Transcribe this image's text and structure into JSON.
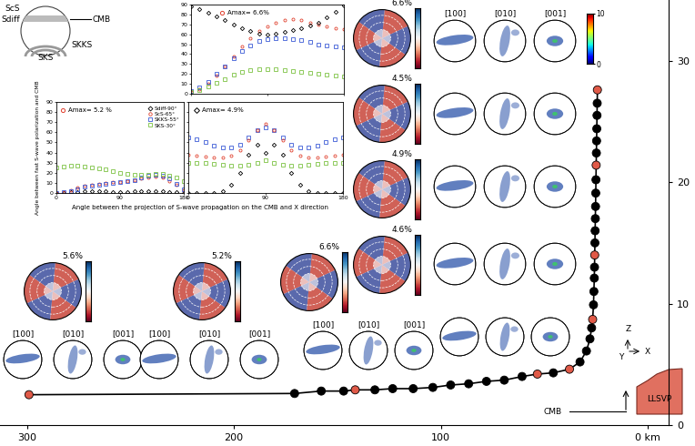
{
  "chart_data": [
    {
      "type": "scatter",
      "x": [
        299,
        170.7,
        157.8,
        147,
        141.4,
        131.9,
        123.3,
        113.4,
        103.9,
        95.3,
        86.6,
        78,
        69.4,
        60.8,
        53.4,
        45.7,
        37.9,
        32.8,
        29.7,
        28,
        27.2,
        26.7,
        26.3,
        26.1,
        25.9,
        25.8,
        25.7,
        25.6,
        25.5,
        25.4,
        25.3,
        25.2,
        25.1,
        25,
        24.9,
        24.8,
        24.7,
        24.6,
        24.5,
        24.4
      ],
      "values": [
        2.5,
        2.6,
        2.8,
        2.8,
        2.9,
        2.9,
        3.0,
        3.0,
        3.1,
        3.3,
        3.4,
        3.6,
        3.7,
        4.0,
        4.2,
        4.3,
        4.6,
        5.2,
        6.1,
        7.1,
        8.0,
        8.7,
        9.9,
        11.0,
        12.1,
        13.0,
        14.0,
        15.0,
        16.0,
        17.0,
        18.0,
        19.1,
        20.2,
        21.4,
        22.4,
        23.4,
        24.4,
        25.5,
        26.5,
        27.6
      ],
      "colors": [
        "#e05a48",
        "#000000",
        "#000000",
        "#000000",
        "#e05a48",
        "#000000",
        "#000000",
        "#000000",
        "#000000",
        "#000000",
        "#000000",
        "#000000",
        "#000000",
        "#000000",
        "#e05a48",
        "#000000",
        "#e05a48",
        "#000000",
        "#000000",
        "#000000",
        "#000000",
        "#e05a48",
        "#000000",
        "#000000",
        "#000000",
        "#000000",
        "#e05a48",
        "#000000",
        "#000000",
        "#000000",
        "#000000",
        "#000000",
        "#000000",
        "#e05a48",
        "#000000",
        "#000000",
        "#000000",
        "#000000",
        "#000000",
        "#e05a48"
      ],
      "marker": "circle",
      "line_style": "solid",
      "xlim": [
        313,
        -10
      ],
      "ylim": [
        0,
        35
      ],
      "xticks": [
        300,
        200,
        100,
        {
          "value": 0,
          "label": "0 km"
        }
      ],
      "yticks": [
        0,
        10,
        20,
        30
      ]
    },
    {
      "type": "scatter",
      "x": [
        0,
        10,
        20,
        30,
        40,
        50,
        60,
        70,
        80,
        90,
        100,
        110,
        120,
        130,
        140,
        150,
        160,
        170,
        180
      ],
      "series": [
        {
          "color": "#e0402e",
          "marker": "circle",
          "values": [
            2,
            5,
            10,
            18,
            28,
            38,
            48,
            56,
            63,
            68,
            72,
            74,
            75,
            74,
            72,
            70,
            68,
            66,
            65
          ]
        },
        {
          "color": "#000000",
          "marker": "diamond",
          "values": [
            88,
            85,
            82,
            78,
            74,
            70,
            66,
            63,
            61,
            60,
            61,
            62,
            64,
            66,
            69,
            72,
            77,
            83,
            89
          ]
        },
        {
          "color": "#3b5bd6",
          "marker": "square",
          "values": [
            3,
            6,
            12,
            20,
            28,
            36,
            43,
            49,
            53,
            55,
            56,
            56,
            55,
            54,
            52,
            50,
            49,
            48,
            47
          ]
        },
        {
          "color": "#7cc242",
          "marker": "square",
          "values": [
            2,
            4,
            7,
            11,
            15,
            19,
            22,
            24,
            25,
            25,
            25,
            24,
            23,
            22,
            21,
            20,
            19,
            18,
            17
          ]
        }
      ],
      "annotation": {
        "text": "Amax= 6.6%",
        "marker": "circle",
        "color": "#e0402e"
      },
      "xlim": [
        0,
        180
      ],
      "ylim": [
        0,
        90
      ],
      "xticks": [
        0,
        90,
        180
      ],
      "yticks": [
        0,
        10,
        20,
        30,
        40,
        50,
        60,
        70,
        80,
        90
      ],
      "tick_labels": "y"
    },
    {
      "type": "scatter",
      "x": [
        0,
        10,
        20,
        30,
        40,
        50,
        60,
        70,
        80,
        90,
        100,
        110,
        120,
        130,
        140,
        150,
        160,
        170,
        180
      ],
      "series": [
        {
          "name": "Sdiff-90°",
          "color": "#000000",
          "marker": "diamond",
          "values": [
            0,
            0,
            1,
            1,
            2,
            2,
            2,
            2,
            1,
            1,
            1,
            2,
            2,
            2,
            2,
            2,
            1,
            1,
            0
          ]
        },
        {
          "name": "ScS-65°",
          "color": "#e0402e",
          "marker": "circle",
          "values": [
            0,
            1,
            3,
            5,
            7,
            8,
            9,
            10,
            11,
            11,
            12,
            13,
            14,
            15,
            16,
            15,
            12,
            8,
            3
          ]
        },
        {
          "name": "SKKS-55°",
          "color": "#3b5bd6",
          "marker": "square",
          "values": [
            0,
            1,
            2,
            4,
            6,
            7,
            8,
            9,
            10,
            11,
            12,
            13,
            15,
            17,
            18,
            17,
            14,
            9,
            4
          ]
        },
        {
          "name": "SKS-30°",
          "color": "#7cc242",
          "marker": "square",
          "values": [
            25,
            26,
            27,
            27,
            26,
            25,
            24,
            23,
            22,
            20,
            19,
            18,
            18,
            18,
            19,
            19,
            17,
            15,
            12
          ]
        }
      ],
      "annotation": {
        "text": "Amax= 5.2 %",
        "marker": "circle",
        "color": "#e0402e"
      },
      "legend": "upper right",
      "xlim": [
        0,
        180
      ],
      "ylim": [
        0,
        90
      ],
      "xticks": [
        0,
        90,
        180
      ],
      "yticks": [
        0,
        10,
        20,
        30,
        40,
        50,
        60,
        70,
        80,
        90
      ]
    },
    {
      "type": "scatter",
      "x": [
        0,
        10,
        20,
        30,
        40,
        50,
        60,
        70,
        80,
        90,
        100,
        110,
        120,
        130,
        140,
        150,
        160,
        170,
        180
      ],
      "series": [
        {
          "color": "#3b5bd6",
          "marker": "square",
          "values": [
            55,
            53,
            50,
            47,
            45,
            45,
            48,
            55,
            62,
            65,
            62,
            55,
            48,
            45,
            45,
            47,
            50,
            53,
            55
          ]
        },
        {
          "color": "#e0402e",
          "marker": "circle",
          "values": [
            38,
            37,
            36,
            35,
            35,
            37,
            42,
            52,
            62,
            68,
            62,
            52,
            42,
            37,
            35,
            35,
            36,
            37,
            38
          ]
        },
        {
          "color": "#7cc242",
          "marker": "square",
          "values": [
            30,
            30,
            30,
            29,
            28,
            27,
            27,
            28,
            30,
            32,
            30,
            28,
            27,
            27,
            28,
            29,
            30,
            30,
            30
          ]
        },
        {
          "color": "#000000",
          "marker": "diamond",
          "values": [
            0,
            0,
            0,
            0,
            2,
            8,
            20,
            38,
            48,
            40,
            48,
            38,
            20,
            8,
            2,
            0,
            0,
            0,
            0
          ]
        }
      ],
      "annotation": {
        "text": "Amax= 4.9%",
        "marker": "diamond",
        "color": "#000000"
      },
      "xlim": [
        0,
        180
      ],
      "ylim": [
        0,
        90
      ],
      "xticks": [
        0,
        90,
        180
      ],
      "yticks": [
        0,
        10,
        20,
        30,
        40,
        50,
        60,
        70,
        80,
        90
      ],
      "tick_labels": "x"
    }
  ],
  "axis_labels": {
    "x": "Angle between the projection of S-wave propagation on the CMB and X direction",
    "y": "Angle between fast S-wave polarization and CMB"
  },
  "schematic": {
    "labels": [
      "ScS",
      "Sdiff",
      "CMB",
      "SKKS",
      "SKS"
    ]
  },
  "pole_figures": {
    "axes": [
      "[100]",
      "[010]",
      "[001]"
    ],
    "colorbar": {
      "range": [
        0,
        10
      ],
      "ticks": [
        0,
        10
      ]
    },
    "anisotropy": [
      "6.6%",
      "4.5%",
      "4.9%",
      "4.6%",
      "5.6%",
      "5.2%",
      "6.6%"
    ]
  },
  "diagram": {
    "cmb": "CMB",
    "llsvp": "LLSVP",
    "axes": [
      "Z",
      "Y",
      "X"
    ]
  }
}
